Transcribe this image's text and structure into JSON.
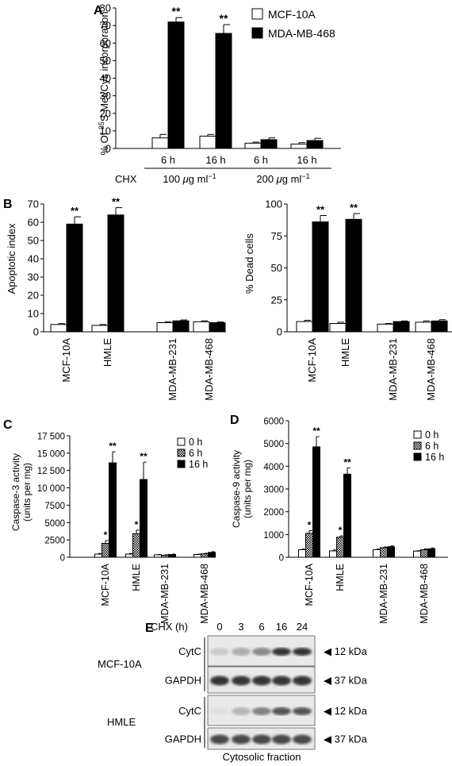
{
  "panel_labels": {
    "a": "A",
    "b": "B",
    "c": "C",
    "d": "D",
    "e": "E"
  },
  "colors": {
    "white_bar": "#ffffff",
    "black_bar": "#000000",
    "outline": "#000000"
  },
  "chart_data": [
    {
      "id": "A",
      "type": "bar",
      "ylabel_pre": "% Of ",
      "ylabel_sup": "35",
      "ylabel_post": "S Met/Cys incorporation",
      "ylim": [
        0,
        80
      ],
      "yticks": [
        "0",
        "10",
        "20",
        "30",
        "40",
        "50",
        "60",
        "70",
        "80"
      ],
      "categories": [
        "6 h",
        "16 h",
        "6 h",
        "16 h"
      ],
      "group_prefix": "CHX",
      "groups": [
        {
          "pre": "100 ",
          "mu": "μ",
          "post": "g ml",
          "sup": "−1"
        },
        {
          "pre": "200 ",
          "mu": "μ",
          "post": "g ml",
          "sup": "−1"
        }
      ],
      "legend": [
        "MCF-10A",
        "MDA-MB-468"
      ],
      "series": [
        {
          "name": "MCF-10A",
          "values": [
            6,
            7,
            3,
            2.5
          ],
          "errors": [
            2,
            1,
            0.6,
            0.8
          ]
        },
        {
          "name": "MDA-MB-468",
          "values": [
            72,
            65.5,
            5,
            4.5
          ],
          "errors": [
            2.5,
            5,
            1,
            1.3
          ]
        }
      ],
      "annotations": [
        "**",
        "**"
      ]
    },
    {
      "id": "B1",
      "type": "bar",
      "ylabel": "Apoptotic index",
      "ylim": [
        0,
        70
      ],
      "yticks": [
        "0",
        "10",
        "20",
        "30",
        "40",
        "50",
        "60",
        "70"
      ],
      "categories": [
        "MCF-10A",
        "HMLE",
        "MDA-MB-231",
        "MDA-MB-468"
      ],
      "series": [
        {
          "values": [
            4,
            3.5,
            5,
            5.5
          ],
          "errors": [
            0.5,
            0.5,
            0.5,
            0.5
          ]
        },
        {
          "values": [
            59,
            64,
            6,
            5
          ],
          "errors": [
            4,
            4,
            0.5,
            0.4
          ]
        }
      ],
      "annotations": [
        "**",
        "**"
      ]
    },
    {
      "id": "B2",
      "type": "bar",
      "ylabel": "% Dead cells",
      "ylim": [
        0,
        100
      ],
      "yticks": [
        "0",
        "25",
        "50",
        "75",
        "100"
      ],
      "categories": [
        "MCF-10A",
        "HMLE",
        "MDA-MB-231",
        "MDA-MB-468"
      ],
      "series": [
        {
          "values": [
            8,
            6.5,
            6,
            7.5
          ],
          "errors": [
            1,
            1,
            0.5,
            1
          ]
        },
        {
          "values": [
            86,
            88,
            8,
            8.5
          ],
          "errors": [
            5,
            4.5,
            0.5,
            1
          ]
        }
      ],
      "annotations": [
        "**",
        "**"
      ]
    },
    {
      "id": "C",
      "type": "bar",
      "ylabel": "Caspase-3 activity",
      "ylabel2": "(units per mg)",
      "ylim": [
        0,
        17500
      ],
      "yticks": [
        "0",
        "2500",
        "5000",
        "7500",
        "10 000",
        "12 500",
        "15 000",
        "17 500"
      ],
      "categories": [
        "MCF-10A",
        "HMLE",
        "MDA-MB-231",
        "MDA-MB-468"
      ],
      "legend": [
        "0 h",
        "6 h",
        "16 h"
      ],
      "series": [
        {
          "name": "0 h",
          "values": [
            450,
            450,
            350,
            400
          ],
          "errors": [
            100,
            100,
            50,
            50
          ]
        },
        {
          "name": "6 h",
          "values": [
            2000,
            3400,
            300,
            500
          ],
          "errors": [
            400,
            500,
            50,
            80
          ]
        },
        {
          "name": "16 h",
          "values": [
            13600,
            11200,
            400,
            700
          ],
          "errors": [
            1600,
            2500,
            50,
            100
          ]
        }
      ],
      "annotations": [
        "*",
        "**",
        "*",
        "**"
      ]
    },
    {
      "id": "D",
      "type": "bar",
      "ylabel": "Caspase-9 activity",
      "ylabel2": "(units per mg)",
      "ylim": [
        0,
        6000
      ],
      "yticks": [
        "0",
        "1000",
        "2000",
        "3000",
        "4000",
        "5000",
        "6000"
      ],
      "categories": [
        "MCF-10A",
        "HMLE",
        "MDA-MB-231",
        "MDA-MB-468"
      ],
      "legend": [
        "0 h",
        "6 h",
        "16 h"
      ],
      "series": [
        {
          "name": "0 h",
          "values": [
            330,
            280,
            330,
            270
          ],
          "errors": [
            30,
            40,
            30,
            20
          ]
        },
        {
          "name": "6 h",
          "values": [
            1050,
            880,
            420,
            330
          ],
          "errors": [
            120,
            60,
            30,
            40
          ]
        },
        {
          "name": "16 h",
          "values": [
            4850,
            3650,
            460,
            370
          ],
          "errors": [
            450,
            280,
            40,
            40
          ]
        }
      ],
      "annotations": [
        "*",
        "**",
        "*",
        "**"
      ]
    }
  ],
  "blot": {
    "header": "CHX (h)",
    "lanes": [
      "0",
      "3",
      "6",
      "16",
      "24"
    ],
    "groups": [
      {
        "name": "MCF-10A",
        "rows": [
          {
            "label": "CytC",
            "size": "12 kDa",
            "intensity": [
              0.15,
              0.3,
              0.45,
              0.85,
              0.85
            ]
          },
          {
            "label": "GAPDH",
            "size": "37 kDa",
            "intensity": [
              0.85,
              0.85,
              0.85,
              0.85,
              0.85
            ]
          }
        ]
      },
      {
        "name": "HMLE",
        "rows": [
          {
            "label": "CytC",
            "size": "12 kDa",
            "intensity": [
              0.05,
              0.25,
              0.5,
              0.7,
              0.7
            ]
          },
          {
            "label": "GAPDH",
            "size": "37 kDa",
            "intensity": [
              0.75,
              0.75,
              0.75,
              0.75,
              0.75
            ]
          }
        ]
      }
    ],
    "caption": "Cytosolic fraction"
  }
}
